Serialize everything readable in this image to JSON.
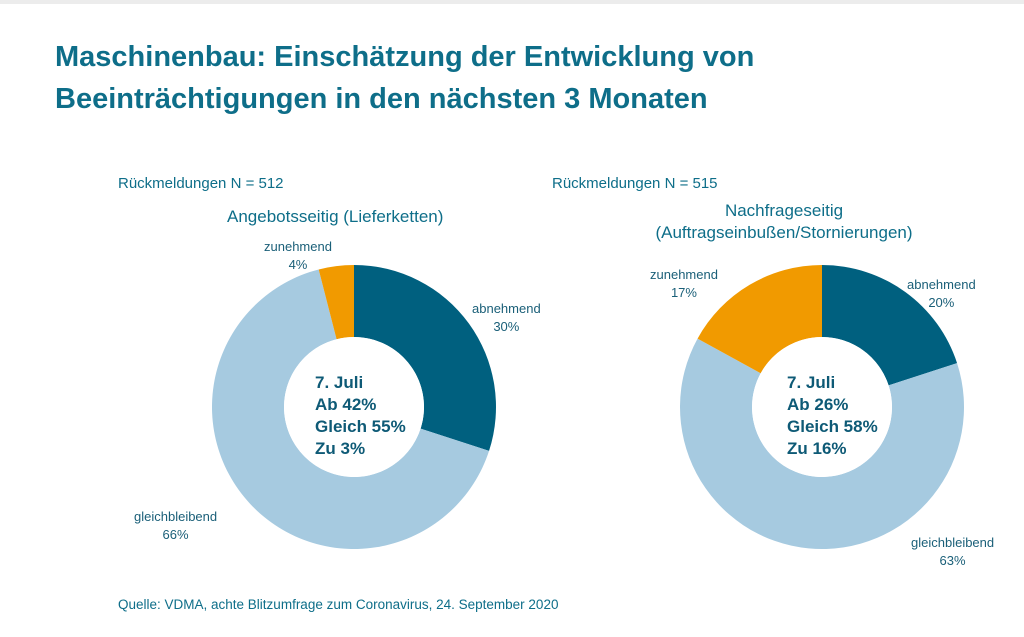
{
  "title_lines": [
    "Maschinenbau: Einschätzung der Entwicklung von",
    "Beeinträchtigungen in den nächsten 3 Monaten"
  ],
  "source": "Quelle: VDMA, achte Blitzumfrage zum Coronavirus, 24. September 2020",
  "colors": {
    "abnehmend": "#00607f",
    "gleichbleibend": "#a6cae0",
    "zunehmend": "#f19a00",
    "text": "#0e6e89"
  },
  "chart_data": [
    {
      "type": "pie",
      "donut": true,
      "n_label": "Rückmeldungen N = 512",
      "subtitle": [
        "Angebotsseitig (Lieferketten)"
      ],
      "slices": [
        {
          "key": "abnehmend",
          "label": "abnehmend",
          "value": 30,
          "value_label": "30%"
        },
        {
          "key": "gleichbleibend",
          "label": "gleichbleibend",
          "value": 66,
          "value_label": "66%"
        },
        {
          "key": "zunehmend",
          "label": "zunehmend",
          "value": 4,
          "value_label": "4%"
        }
      ],
      "center_text": [
        "7. Juli",
        "Ab 42%",
        "Gleich 55%",
        "Zu 3%"
      ]
    },
    {
      "type": "pie",
      "donut": true,
      "n_label": "Rückmeldungen N = 515",
      "subtitle": [
        "Nachfrageseitig",
        "(Auftragseinbußen/Stornierungen)"
      ],
      "slices": [
        {
          "key": "abnehmend",
          "label": "abnehmend",
          "value": 20,
          "value_label": "20%"
        },
        {
          "key": "gleichbleibend",
          "label": "gleichbleibend",
          "value": 63,
          "value_label": "63%"
        },
        {
          "key": "zunehmend",
          "label": "zunehmend",
          "value": 17,
          "value_label": "17%"
        }
      ],
      "center_text": [
        "7. Juli",
        "Ab 26%",
        "Gleich 58%",
        "Zu 16%"
      ]
    }
  ]
}
